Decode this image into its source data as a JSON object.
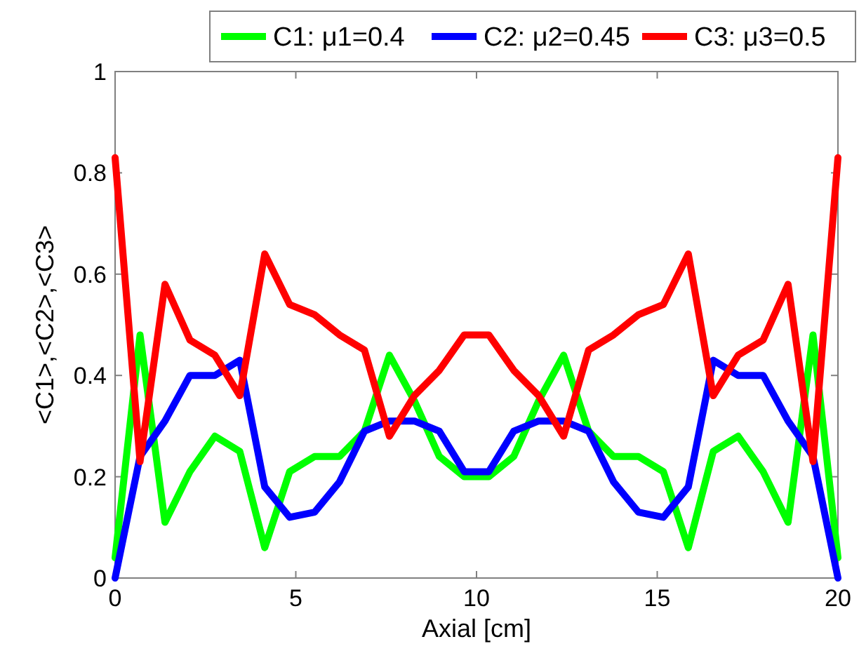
{
  "chart_data": {
    "type": "line",
    "xlabel": "Axial   [cm]",
    "ylabel": "<C1>,<C2>,<C3>",
    "x": [
      0,
      0.69,
      1.38,
      2.07,
      2.76,
      3.45,
      4.14,
      4.83,
      5.52,
      6.21,
      6.9,
      7.59,
      8.28,
      8.97,
      9.66,
      10.34,
      11.03,
      11.72,
      12.41,
      13.1,
      13.79,
      14.48,
      15.17,
      15.86,
      16.55,
      17.24,
      17.93,
      18.62,
      19.31,
      20
    ],
    "series": [
      {
        "name": "C1: μ1=0.4",
        "color": "#00ff00",
        "values": [
          0.04,
          0.48,
          0.11,
          0.21,
          0.28,
          0.25,
          0.06,
          0.21,
          0.24,
          0.24,
          0.29,
          0.44,
          0.35,
          0.24,
          0.2,
          0.2,
          0.24,
          0.35,
          0.44,
          0.29,
          0.24,
          0.24,
          0.21,
          0.06,
          0.25,
          0.28,
          0.21,
          0.11,
          0.48,
          0.04
        ]
      },
      {
        "name": "C2: μ2=0.45",
        "color": "#0000ff",
        "values": [
          0,
          0.24,
          0.31,
          0.4,
          0.4,
          0.43,
          0.18,
          0.12,
          0.13,
          0.19,
          0.29,
          0.31,
          0.31,
          0.29,
          0.21,
          0.21,
          0.29,
          0.31,
          0.31,
          0.29,
          0.19,
          0.13,
          0.12,
          0.18,
          0.43,
          0.4,
          0.4,
          0.31,
          0.24,
          0
        ]
      },
      {
        "name": "C3: μ3=0.5",
        "color": "#ff0000",
        "values": [
          0.83,
          0.23,
          0.58,
          0.47,
          0.44,
          0.36,
          0.64,
          0.54,
          0.52,
          0.48,
          0.45,
          0.28,
          0.36,
          0.41,
          0.48,
          0.48,
          0.41,
          0.36,
          0.28,
          0.45,
          0.48,
          0.52,
          0.54,
          0.64,
          0.36,
          0.44,
          0.47,
          0.58,
          0.23,
          0.83
        ]
      }
    ],
    "xlim": [
      0,
      20
    ],
    "xticks": [
      0,
      5,
      10,
      15,
      20
    ],
    "ylim": [
      0,
      1
    ],
    "yticks": [
      0,
      0.2,
      0.4,
      0.6,
      0.8,
      1
    ],
    "grid": false,
    "legend": "top",
    "marker": "none",
    "line_style": "solid"
  }
}
